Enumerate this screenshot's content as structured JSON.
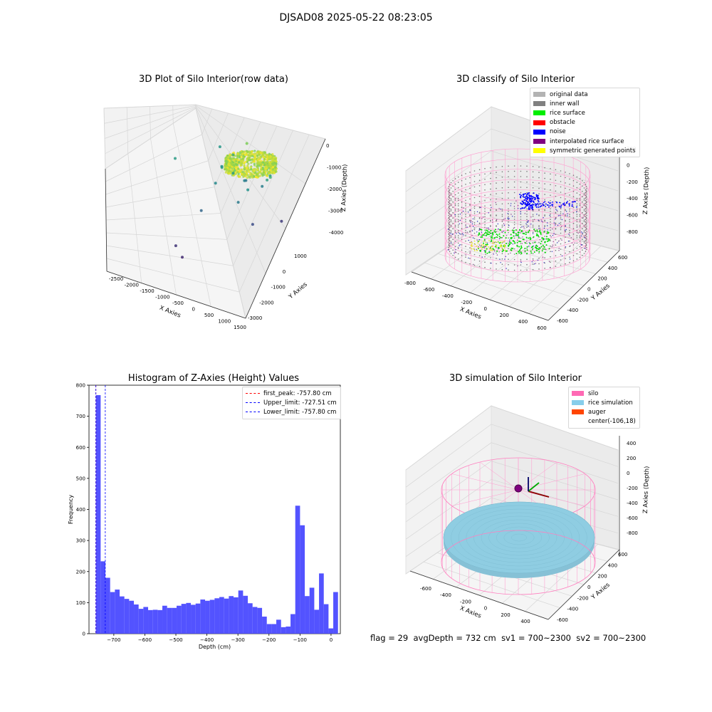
{
  "figure_title": "DJSAD08 2025-05-22 08:23:05",
  "footer": {
    "flag": "flag = 29",
    "avg_depth": "avgDepth = 732 cm",
    "sv1": "sv1 = 700~2300",
    "sv2": "sv2 = 700~2300"
  },
  "chart_data": [
    {
      "type": "scatter",
      "title": "3D Plot of Silo Interior(row data)",
      "xlabel": "X Axies",
      "ylabel": "Y Axies",
      "zlabel": "Z Axies (Depth)",
      "xticks": [
        "-2500",
        "-2000",
        "-1500",
        "-1000",
        "-500",
        "0",
        "500",
        "1000",
        "1500"
      ],
      "yticks": [
        "-3000",
        "-2000",
        "-1000",
        "0",
        "1000"
      ],
      "zticks": [
        "-4000",
        "-3000",
        "-2000",
        "-1000",
        "0"
      ],
      "xlim": [
        -2700,
        1600
      ],
      "ylim": [
        -3500,
        1400
      ],
      "zlim": [
        -4700,
        200
      ],
      "colormap": "viridis",
      "points": [
        {
          "x": -100,
          "y": 50,
          "z": -600
        },
        {
          "x": -600,
          "y": 200,
          "z": -1500
        },
        {
          "x": -700,
          "y": -300,
          "z": -1700
        },
        {
          "x": -900,
          "y": 100,
          "z": -2100
        },
        {
          "x": -400,
          "y": -200,
          "z": -1900
        },
        {
          "x": -200,
          "y": 100,
          "z": -2400
        },
        {
          "x": 200,
          "y": -500,
          "z": -2100
        },
        {
          "x": 300,
          "y": 200,
          "z": -2500
        },
        {
          "x": 600,
          "y": -100,
          "z": -1800
        },
        {
          "x": -800,
          "y": -500,
          "z": -2300
        },
        {
          "x": -300,
          "y": 400,
          "z": -2700
        },
        {
          "x": 0,
          "y": -700,
          "z": -2600
        },
        {
          "x": 500,
          "y": 300,
          "z": -2000
        },
        {
          "x": -1300,
          "y": 800,
          "z": -2000
        },
        {
          "x": 800,
          "y": -300,
          "z": -1400
        },
        {
          "x": -2100,
          "y": -400,
          "z": -1900
        },
        {
          "x": -900,
          "y": -1200,
          "z": -3000
        },
        {
          "x": 400,
          "y": -600,
          "z": -3500
        },
        {
          "x": 900,
          "y": 200,
          "z": -3800
        },
        {
          "x": -1200,
          "y": -2200,
          "z": -3900
        },
        {
          "x": -900,
          "y": -2400,
          "z": -4100
        }
      ]
    },
    {
      "type": "scatter",
      "title": "3D classify of Silo Interior",
      "xlabel": "X Axies",
      "ylabel": "Y Axies",
      "zlabel": "Z Axies (Depth)",
      "xticks": [
        "-800",
        "-600",
        "-400",
        "-200",
        "0",
        "200",
        "400",
        "600"
      ],
      "yticks": [
        "-600",
        "-400",
        "-200",
        "0",
        "200",
        "400",
        "600"
      ],
      "zticks": [
        "-800",
        "-600",
        "-400",
        "-200",
        "0",
        "200"
      ],
      "legend": [
        {
          "label": "original data",
          "color": "#b3b3b3"
        },
        {
          "label": "inner wall",
          "color": "#808080"
        },
        {
          "label": "rice surface",
          "color": "#00ee00"
        },
        {
          "label": "obstacle",
          "color": "#ff0000"
        },
        {
          "label": "noise",
          "color": "#0000ff"
        },
        {
          "label": "interpolated rice surface",
          "color": "#800080"
        },
        {
          "label": "symmetric generated points",
          "color": "#ffff00"
        }
      ]
    },
    {
      "type": "bar",
      "title": "Histogram of Z-Axies (Height) Values",
      "xlabel": "Depth (cm)",
      "ylabel": "Frequency",
      "xlim": [
        -780,
        30
      ],
      "ylim": [
        0,
        800
      ],
      "xticks": [
        "-700",
        "-600",
        "-500",
        "-400",
        "-300",
        "-200",
        "-100",
        "0"
      ],
      "yticks": [
        "0",
        "100",
        "200",
        "300",
        "400",
        "500",
        "600",
        "700",
        "800"
      ],
      "bar_color": "#4a4aff",
      "bin_start": -757.8,
      "bin_width": 15.3,
      "values": [
        768,
        233,
        180,
        134,
        142,
        120,
        112,
        106,
        94,
        80,
        86,
        76,
        77,
        76,
        90,
        83,
        83,
        90,
        96,
        99,
        93,
        97,
        110,
        106,
        109,
        114,
        118,
        113,
        121,
        117,
        139,
        122,
        98,
        86,
        83,
        55,
        31,
        31,
        45,
        21,
        23,
        63,
        412,
        349,
        121,
        148,
        77,
        194,
        95,
        17,
        134
      ],
      "lines": [
        {
          "label": "first_peak: -757.80 cm",
          "x": -757.8,
          "color": "#ff0000"
        },
        {
          "label": "Upper_limit: -727.51 cm",
          "x": -727.51,
          "color": "#0000ff"
        },
        {
          "label": "Lower_limit: -757.80 cm",
          "x": -757.8,
          "color": "#0000ff"
        }
      ]
    },
    {
      "type": "scatter",
      "title": "3D simulation of Silo Interior",
      "xlabel": "X Axies",
      "ylabel": "Y Axies",
      "zlabel": "Z Axies (Depth)",
      "xticks": [
        "-600",
        "-400",
        "-200",
        "0",
        "200",
        "400"
      ],
      "yticks": [
        "-600",
        "-400",
        "-200",
        "0",
        "200",
        "400",
        "600"
      ],
      "zticks": [
        "-800",
        "-600",
        "-400",
        "-200",
        "0",
        "200",
        "400"
      ],
      "legend": [
        {
          "label": "silo",
          "color": "#ff69b4"
        },
        {
          "label": "rice simulation",
          "color": "#87ceeb"
        },
        {
          "label": "auger",
          "color": "#ff4500"
        },
        {
          "label": "center(-106,18)",
          "color": "none"
        }
      ]
    }
  ]
}
